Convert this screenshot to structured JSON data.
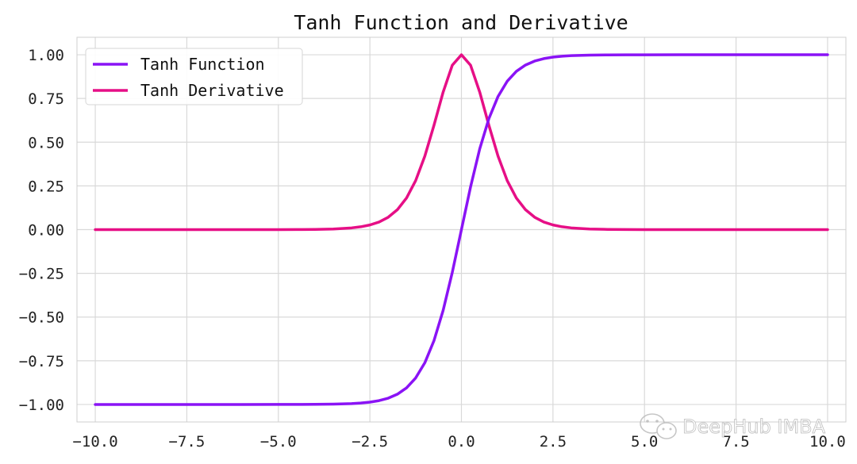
{
  "chart_data": {
    "type": "line",
    "title": "Tanh Function and Derivative",
    "xlabel": "",
    "ylabel": "",
    "xlim": [
      -10.5,
      10.5
    ],
    "ylim": [
      -1.1,
      1.1
    ],
    "x_ticks": [
      -10.0,
      -7.5,
      -5.0,
      -2.5,
      0.0,
      2.5,
      5.0,
      7.5,
      10.0
    ],
    "x_tick_labels": [
      "−10.0",
      "−7.5",
      "−5.0",
      "−2.5",
      "0.0",
      "2.5",
      "5.0",
      "7.5",
      "10.0"
    ],
    "y_ticks": [
      1.0,
      0.75,
      0.5,
      0.25,
      0.0,
      -0.25,
      -0.5,
      -0.75,
      -1.0
    ],
    "y_tick_labels": [
      "1.00",
      "0.75",
      "0.50",
      "0.25",
      "0.00",
      "−0.25",
      "−0.50",
      "−0.75",
      "−1.00"
    ],
    "grid": true,
    "legend_position": "top-left",
    "x": [
      -10.0,
      -9.0,
      -8.0,
      -7.0,
      -6.0,
      -5.0,
      -4.5,
      -4.0,
      -3.5,
      -3.0,
      -2.75,
      -2.5,
      -2.25,
      -2.0,
      -1.75,
      -1.5,
      -1.25,
      -1.0,
      -0.75,
      -0.5,
      -0.25,
      0.0,
      0.25,
      0.5,
      0.75,
      1.0,
      1.25,
      1.5,
      1.75,
      2.0,
      2.25,
      2.5,
      2.75,
      3.0,
      3.5,
      4.0,
      4.5,
      5.0,
      6.0,
      7.0,
      8.0,
      9.0,
      10.0
    ],
    "series": [
      {
        "name": "Tanh Function",
        "color": "#8a13f5",
        "values": [
          -1.0,
          -1.0,
          -1.0,
          -1.0,
          -1.0,
          -0.9999,
          -0.9998,
          -0.9993,
          -0.9982,
          -0.9951,
          -0.9918,
          -0.9866,
          -0.978,
          -0.964,
          -0.9414,
          -0.9051,
          -0.8483,
          -0.7616,
          -0.6351,
          -0.4621,
          -0.2449,
          0.0,
          0.2449,
          0.4621,
          0.6351,
          0.7616,
          0.8483,
          0.9051,
          0.9414,
          0.964,
          0.978,
          0.9866,
          0.9918,
          0.9951,
          0.9982,
          0.9993,
          0.9998,
          0.9999,
          1.0,
          1.0,
          1.0,
          1.0,
          1.0
        ]
      },
      {
        "name": "Tanh Derivative",
        "color": "#e60f86",
        "values": [
          0.0,
          0.0,
          0.0,
          0.0,
          0.0,
          0.0002,
          0.0005,
          0.0013,
          0.0036,
          0.0099,
          0.0163,
          0.0266,
          0.0435,
          0.0707,
          0.1138,
          0.1807,
          0.2804,
          0.42,
          0.5966,
          0.7864,
          0.94,
          1.0,
          0.94,
          0.7864,
          0.5966,
          0.42,
          0.2804,
          0.1807,
          0.1138,
          0.0707,
          0.0435,
          0.0266,
          0.0163,
          0.0099,
          0.0036,
          0.0013,
          0.0005,
          0.0002,
          0.0,
          0.0,
          0.0,
          0.0,
          0.0
        ]
      }
    ]
  },
  "watermark": {
    "text": "DeepHub IMBA",
    "icon": "wechat-icon"
  }
}
